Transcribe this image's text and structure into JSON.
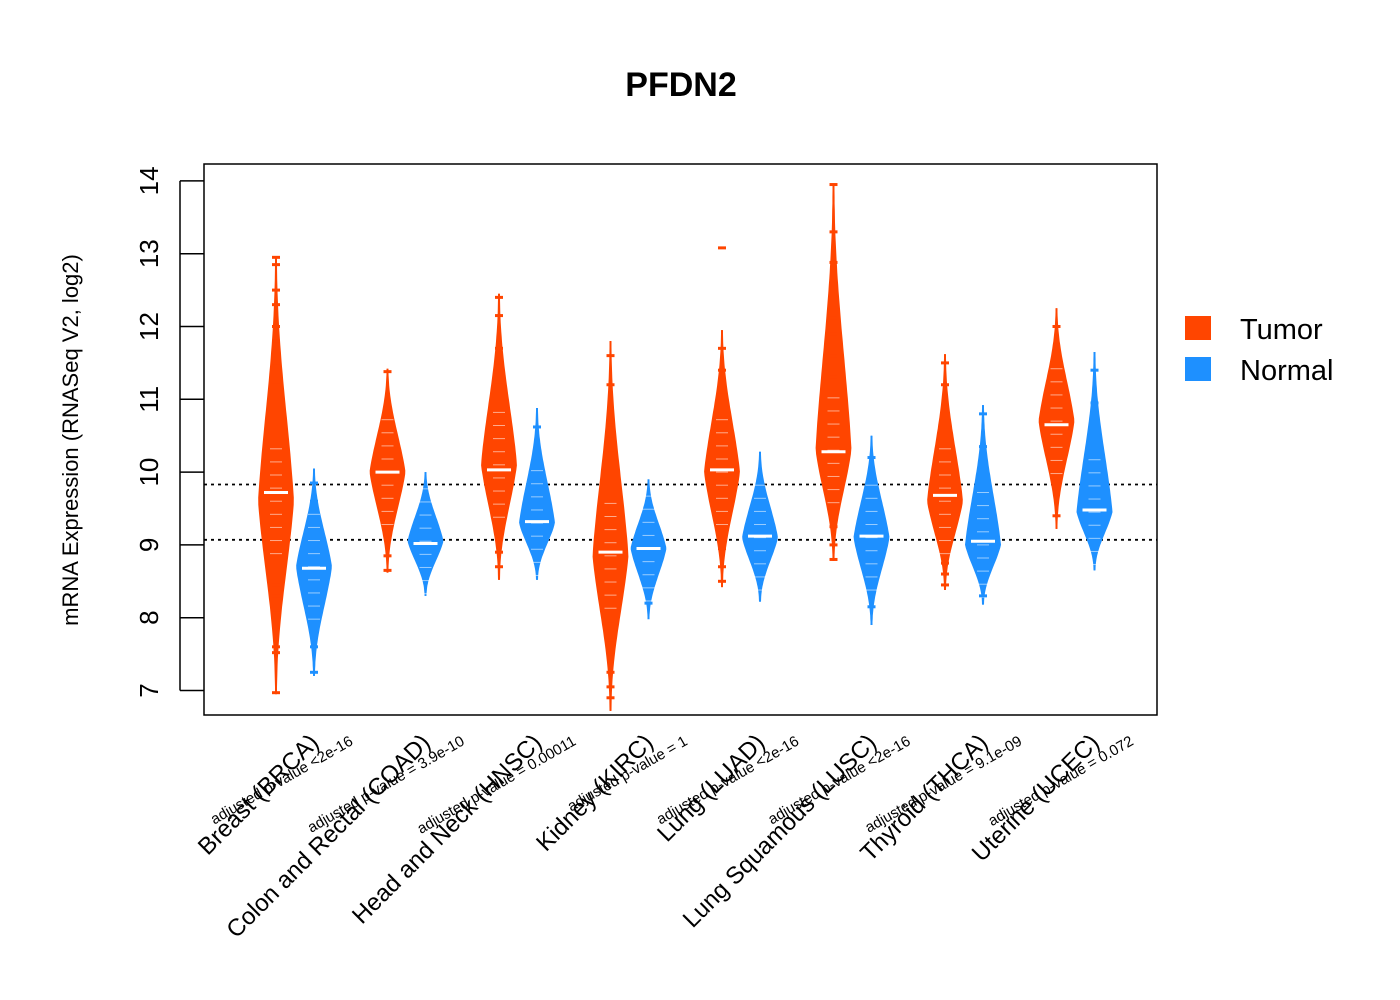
{
  "chart_data": {
    "type": "violin",
    "title": "PFDN2",
    "ylabel": "mRNA Expression (RNASeq V2, log2)",
    "xlabel": "",
    "ylim": [
      6.65,
      14.25
    ],
    "yticks": [
      "7",
      "8",
      "9",
      "10",
      "11",
      "12",
      "13",
      "14"
    ],
    "reference_lines": [
      9.07,
      9.83
    ],
    "colors": {
      "Tumor": "#FF4500",
      "Normal": "#1E90FF"
    },
    "legend": {
      "position": "right",
      "entries": [
        "Tumor",
        "Normal"
      ]
    },
    "categories": [
      {
        "label": "Breast (BRCA)",
        "pvalue": "adjusted p-value <2e-16",
        "tumor": {
          "min": 6.95,
          "max": 12.95,
          "median": 9.72,
          "widest": 9.6,
          "outliers": [
            6.97,
            7.52,
            7.6,
            8.1,
            8.3,
            8.45,
            11.2,
            11.5,
            11.8,
            12.0,
            12.3,
            12.5,
            12.85,
            12.95
          ]
        },
        "normal": {
          "min": 7.2,
          "max": 10.05,
          "median": 8.68,
          "widest": 8.7,
          "outliers": [
            7.25,
            7.6,
            7.85,
            9.6,
            9.85
          ]
        }
      },
      {
        "label": "Colon and Rectal (COAD)",
        "pvalue": "adjusted p-value = 3.9e-10",
        "tumor": {
          "min": 8.62,
          "max": 11.42,
          "median": 10.0,
          "widest": 10.0,
          "outliers": [
            8.65,
            8.85,
            11.38
          ]
        },
        "normal": {
          "min": 8.3,
          "max": 10.0,
          "median": 9.02,
          "widest": 9.05,
          "outliers": []
        }
      },
      {
        "label": "Head and Neck (HNSC)",
        "pvalue": "adjusted p-value = 0.00011",
        "tumor": {
          "min": 8.52,
          "max": 12.45,
          "median": 10.03,
          "widest": 10.1,
          "outliers": [
            8.7,
            8.9,
            11.2,
            11.5,
            11.7,
            12.15,
            12.4
          ]
        },
        "normal": {
          "min": 8.52,
          "max": 10.88,
          "median": 9.32,
          "widest": 9.3,
          "outliers": [
            10.62
          ]
        }
      },
      {
        "label": "Kidney (KIRC)",
        "pvalue": "adjusted p-value = 1",
        "tumor": {
          "min": 6.72,
          "max": 11.8,
          "median": 8.9,
          "widest": 8.85,
          "outliers": [
            6.9,
            7.05,
            7.25,
            7.5,
            7.7,
            7.95,
            10.3,
            10.5,
            10.65,
            11.2,
            11.6
          ]
        },
        "normal": {
          "min": 7.98,
          "max": 9.9,
          "median": 8.95,
          "widest": 8.95,
          "outliers": [
            8.2
          ]
        }
      },
      {
        "label": "Lung (LUAD)",
        "pvalue": "adjusted p-value <2e-16",
        "tumor": {
          "min": 8.42,
          "max": 11.95,
          "median": 10.03,
          "widest": 10.0,
          "outliers": [
            8.5,
            8.7,
            8.95,
            11.1,
            11.4,
            11.7,
            13.08
          ]
        },
        "normal": {
          "min": 8.22,
          "max": 10.28,
          "median": 9.12,
          "widest": 9.1,
          "outliers": []
        }
      },
      {
        "label": "Lung Squamous (LUSC)",
        "pvalue": "adjusted p-value <2e-16",
        "tumor": {
          "min": 8.78,
          "max": 13.95,
          "median": 10.28,
          "widest": 10.3,
          "outliers": [
            8.8,
            9.0,
            9.25,
            11.3,
            11.6,
            11.9,
            12.12,
            12.88,
            13.3,
            13.95
          ]
        },
        "normal": {
          "min": 7.9,
          "max": 10.5,
          "median": 9.12,
          "widest": 9.1,
          "outliers": [
            8.15,
            10.2
          ]
        }
      },
      {
        "label": "Thyroid (THCA)",
        "pvalue": "adjusted p-value = 9.1e-09",
        "tumor": {
          "min": 8.38,
          "max": 11.62,
          "median": 9.68,
          "widest": 9.6,
          "outliers": [
            8.45,
            8.6,
            8.75,
            10.9,
            11.2,
            11.5
          ]
        },
        "normal": {
          "min": 8.18,
          "max": 10.92,
          "median": 9.05,
          "widest": 9.0,
          "outliers": [
            8.3,
            10.35,
            10.8
          ]
        }
      },
      {
        "label": "Uterine (UCEC)",
        "pvalue": "adjusted p-value = 0.072",
        "tumor": {
          "min": 9.22,
          "max": 12.25,
          "median": 10.65,
          "widest": 10.7,
          "outliers": [
            9.4,
            12.0
          ]
        },
        "normal": {
          "min": 8.65,
          "max": 11.65,
          "median": 9.48,
          "widest": 9.45,
          "outliers": [
            10.95,
            11.4
          ]
        }
      }
    ]
  }
}
